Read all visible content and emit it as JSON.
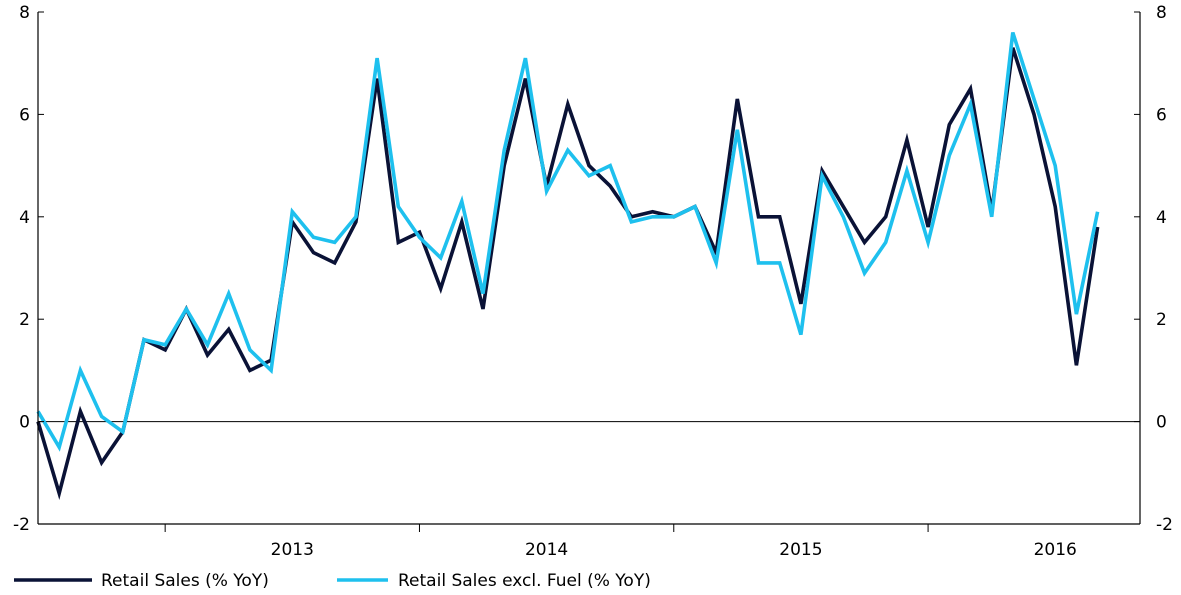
{
  "chart_data": {
    "type": "line",
    "title": "",
    "xlabel": "",
    "ylabel": "",
    "ylim": [
      -2,
      8
    ],
    "yticks": [
      -2,
      0,
      2,
      4,
      6,
      8
    ],
    "ytick_labels": [
      "-2",
      "0",
      "2",
      "4",
      "6",
      "8"
    ],
    "secondary_y_axis": true,
    "x_start": "2012-07",
    "x_end": "2016-11",
    "x_year_labels": [
      "2013",
      "2014",
      "2015",
      "2016"
    ],
    "zero_line": true,
    "grid": false,
    "legend_position": "bottom-left",
    "x": [
      "2012-07",
      "2012-08",
      "2012-09",
      "2012-10",
      "2012-11",
      "2012-12",
      "2013-01",
      "2013-02",
      "2013-03",
      "2013-04",
      "2013-05",
      "2013-06",
      "2013-07",
      "2013-08",
      "2013-09",
      "2013-10",
      "2013-11",
      "2013-12",
      "2014-01",
      "2014-02",
      "2014-03",
      "2014-04",
      "2014-05",
      "2014-06",
      "2014-07",
      "2014-08",
      "2014-09",
      "2014-10",
      "2014-11",
      "2014-12",
      "2015-01",
      "2015-02",
      "2015-03",
      "2015-04",
      "2015-05",
      "2015-06",
      "2015-07",
      "2015-08",
      "2015-09",
      "2015-10",
      "2015-11",
      "2015-12",
      "2016-01",
      "2016-02",
      "2016-03",
      "2016-04",
      "2016-05",
      "2016-06",
      "2016-07",
      "2016-08",
      "2016-09"
    ],
    "series": [
      {
        "name": "Retail Sales (% YoY)",
        "color": "#0a1236",
        "values": [
          0.0,
          -1.4,
          0.2,
          -0.8,
          -0.2,
          1.6,
          1.4,
          2.2,
          1.3,
          1.8,
          1.0,
          1.2,
          3.9,
          3.3,
          3.1,
          3.9,
          6.7,
          3.5,
          3.7,
          2.6,
          3.9,
          2.2,
          5.0,
          6.7,
          4.6,
          6.2,
          5.0,
          4.6,
          4.0,
          4.1,
          4.0,
          4.2,
          3.3,
          6.3,
          4.0,
          4.0,
          2.3,
          4.9,
          4.2,
          3.5,
          4.0,
          5.5,
          3.8,
          5.8,
          6.5,
          4.1,
          7.3,
          6.0,
          4.2,
          1.1,
          3.8
        ]
      },
      {
        "name": "Retail Sales excl. Fuel (% YoY)",
        "color": "#1ec0ee",
        "values": [
          0.2,
          -0.5,
          1.0,
          0.1,
          -0.2,
          1.6,
          1.5,
          2.2,
          1.5,
          2.5,
          1.4,
          1.0,
          4.1,
          3.6,
          3.5,
          4.0,
          7.1,
          4.2,
          3.6,
          3.2,
          4.3,
          2.5,
          5.3,
          7.1,
          4.5,
          5.3,
          4.8,
          5.0,
          3.9,
          4.0,
          4.0,
          4.2,
          3.1,
          5.7,
          3.1,
          3.1,
          1.7,
          4.8,
          4.0,
          2.9,
          3.5,
          4.9,
          3.5,
          5.2,
          6.2,
          4.0,
          7.6,
          6.3,
          5.0,
          2.1,
          4.1
        ]
      }
    ]
  }
}
